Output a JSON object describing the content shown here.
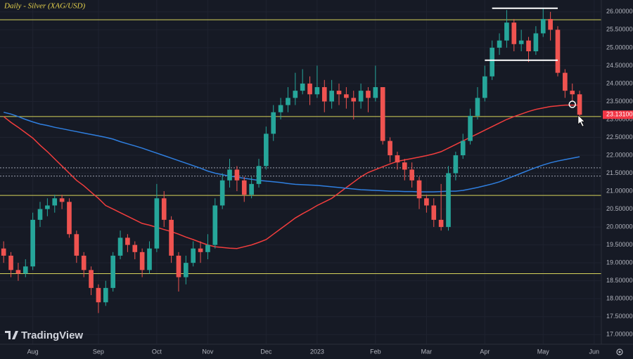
{
  "chart_data": {
    "type": "candlestick",
    "title": "Daily - Silver (XAG/USD)",
    "watermark": "TradingView",
    "categories": [
      null,
      null,
      null,
      null,
      "Aug",
      null,
      null,
      null,
      null,
      null,
      null,
      null,
      null,
      "Sep",
      null,
      null,
      null,
      null,
      null,
      null,
      null,
      "Oct",
      null,
      null,
      null,
      null,
      null,
      null,
      "Nov",
      null,
      null,
      null,
      null,
      null,
      null,
      null,
      "Dec",
      null,
      null,
      null,
      null,
      null,
      null,
      "2023",
      null,
      null,
      null,
      null,
      null,
      null,
      null,
      "Feb",
      null,
      null,
      null,
      null,
      null,
      null,
      "Mar",
      null,
      null,
      null,
      null,
      null,
      null,
      null,
      "Apr",
      null,
      null,
      null,
      null,
      null,
      null,
      null,
      "May",
      null,
      null,
      null,
      null,
      null,
      null,
      "Jun"
    ],
    "open": [
      19.4,
      19.2,
      18.8,
      18.7,
      18.9,
      20.2,
      20.5,
      20.6,
      20.8,
      20.7,
      19.8,
      19.2,
      18.8,
      18.3,
      17.9,
      18.3,
      19.2,
      19.7,
      19.5,
      19.3,
      18.8,
      19.4,
      20.8,
      20.2,
      19.2,
      18.6,
      19.0,
      19.4,
      19.3,
      19.5,
      20.6,
      21.3,
      21.6,
      21.3,
      20.9,
      21.2,
      21.7,
      22.6,
      23.2,
      23.4,
      23.6,
      23.8,
      24.0,
      23.7,
      23.9,
      23.5,
      23.8,
      23.7,
      23.6,
      23.5,
      23.8,
      23.6,
      23.9,
      22.4,
      22.0,
      21.8,
      21.6,
      21.3,
      20.8,
      20.6,
      20.2,
      20.0,
      21.5,
      22.0,
      22.4,
      23.1,
      23.6,
      24.2,
      25.0,
      25.2,
      25.7,
      25.1,
      25.2,
      24.9,
      25.4,
      25.8,
      25.5,
      24.3,
      23.8,
      23.7,
      null,
      null
    ],
    "high": [
      19.6,
      19.3,
      19.0,
      19.1,
      20.4,
      20.7,
      20.8,
      20.9,
      20.9,
      20.8,
      19.9,
      19.3,
      18.9,
      18.4,
      18.5,
      19.3,
      19.9,
      19.8,
      19.6,
      19.4,
      19.6,
      21.2,
      21.0,
      20.3,
      19.3,
      19.2,
      19.6,
      19.6,
      19.8,
      20.8,
      21.5,
      21.9,
      21.7,
      21.4,
      21.4,
      21.9,
      22.8,
      23.4,
      23.6,
      23.9,
      24.3,
      24.4,
      24.2,
      24.5,
      24.1,
      24.1,
      24.0,
      23.9,
      23.8,
      24.0,
      23.9,
      24.5,
      23.9,
      22.5,
      22.1,
      21.9,
      21.8,
      21.4,
      20.9,
      20.8,
      21.2,
      21.7,
      22.1,
      22.6,
      23.3,
      23.9,
      24.5,
      25.2,
      25.4,
      26.05,
      25.8,
      25.5,
      25.3,
      25.6,
      26.1,
      26.0,
      25.6,
      24.4,
      24.0,
      23.8,
      null,
      null
    ],
    "low": [
      19.0,
      18.6,
      18.5,
      18.6,
      18.8,
      20.0,
      20.3,
      20.4,
      20.5,
      19.7,
      19.0,
      18.6,
      18.1,
      17.6,
      17.8,
      18.2,
      19.1,
      19.3,
      19.1,
      18.6,
      18.7,
      19.3,
      20.0,
      19.0,
      18.2,
      18.4,
      18.9,
      19.0,
      19.1,
      19.4,
      20.5,
      21.1,
      21.0,
      20.7,
      20.8,
      21.1,
      21.6,
      22.4,
      23.0,
      23.2,
      23.4,
      23.7,
      23.4,
      23.6,
      23.2,
      23.3,
      23.4,
      23.3,
      23.0,
      23.3,
      23.2,
      23.5,
      22.3,
      21.8,
      21.6,
      21.3,
      21.1,
      20.5,
      20.4,
      20.0,
      19.9,
      19.9,
      21.3,
      21.9,
      22.3,
      23.0,
      23.5,
      24.1,
      24.8,
      25.0,
      24.9,
      24.9,
      24.6,
      24.8,
      25.3,
      25.2,
      24.2,
      23.6,
      23.5,
      23.0,
      null,
      null
    ],
    "close": [
      19.2,
      18.8,
      18.7,
      18.9,
      20.2,
      20.5,
      20.6,
      20.8,
      20.7,
      19.8,
      19.2,
      18.8,
      18.3,
      17.9,
      18.3,
      19.2,
      19.7,
      19.5,
      19.3,
      18.8,
      19.4,
      20.8,
      20.2,
      19.2,
      18.6,
      19.0,
      19.4,
      19.3,
      19.5,
      20.6,
      21.3,
      21.6,
      21.3,
      20.9,
      21.2,
      21.7,
      22.6,
      23.2,
      23.4,
      23.6,
      23.8,
      24.0,
      23.7,
      23.9,
      23.5,
      23.8,
      23.7,
      23.6,
      23.5,
      23.8,
      23.6,
      23.9,
      22.4,
      22.0,
      21.8,
      21.6,
      21.3,
      20.8,
      20.6,
      20.2,
      20.0,
      21.5,
      22.0,
      22.4,
      23.1,
      23.6,
      24.2,
      25.0,
      25.2,
      25.7,
      25.1,
      25.2,
      24.9,
      25.4,
      25.8,
      25.5,
      24.3,
      23.8,
      23.7,
      23.131,
      null,
      null
    ],
    "up_color": "#26a69a",
    "down_color": "#ef5350",
    "series": [
      {
        "color": "#f23d3d",
        "values": [
          23.08,
          22.92,
          22.78,
          22.63,
          22.48,
          22.28,
          22.1,
          21.9,
          21.7,
          21.5,
          21.3,
          21.15,
          20.97,
          20.8,
          20.6,
          20.5,
          20.4,
          20.3,
          20.2,
          20.1,
          20.05,
          19.99,
          19.93,
          19.87,
          19.8,
          19.72,
          19.65,
          19.57,
          19.5,
          19.45,
          19.43,
          19.41,
          19.4,
          19.45,
          19.5,
          19.57,
          19.65,
          19.8,
          19.95,
          20.1,
          20.25,
          20.37,
          20.48,
          20.6,
          20.7,
          20.8,
          20.95,
          21.1,
          21.25,
          21.4,
          21.52,
          21.6,
          21.68,
          21.76,
          21.83,
          21.87,
          21.91,
          21.95,
          21.99,
          22.04,
          22.1,
          22.2,
          22.3,
          22.4,
          22.5,
          22.6,
          22.7,
          22.8,
          22.9,
          23.0,
          23.08,
          23.15,
          23.22,
          23.28,
          23.32,
          23.36,
          23.38,
          23.4,
          23.4,
          23.4,
          null,
          null
        ]
      },
      {
        "color": "#2f7fe0",
        "values": [
          23.2,
          23.15,
          23.08,
          23.0,
          22.93,
          22.87,
          22.83,
          22.78,
          22.74,
          22.7,
          22.66,
          22.62,
          22.58,
          22.54,
          22.5,
          22.45,
          22.38,
          22.32,
          22.26,
          22.2,
          22.13,
          22.06,
          21.99,
          21.92,
          21.85,
          21.78,
          21.71,
          21.64,
          21.56,
          21.5,
          21.46,
          21.42,
          21.39,
          21.36,
          21.33,
          21.3,
          21.28,
          21.26,
          21.24,
          21.21,
          21.19,
          21.18,
          21.17,
          21.16,
          21.14,
          21.12,
          21.1,
          21.08,
          21.06,
          21.04,
          21.03,
          21.02,
          21.01,
          21.0,
          21.0,
          20.99,
          20.99,
          20.98,
          20.98,
          20.98,
          20.99,
          21.0,
          21.0,
          21.02,
          21.06,
          21.1,
          21.15,
          21.2,
          21.26,
          21.34,
          21.42,
          21.5,
          21.58,
          21.66,
          21.73,
          21.79,
          21.84,
          21.88,
          21.92,
          21.96,
          null,
          null
        ]
      }
    ],
    "hlines": [
      {
        "value": 25.78,
        "color": "#d6d35a",
        "dash": false
      },
      {
        "value": 23.08,
        "color": "#d6d35a",
        "dash": false
      },
      {
        "value": 20.88,
        "color": "#d6d35a",
        "dash": false
      },
      {
        "value": 18.7,
        "color": "#d6d35a",
        "dash": false
      },
      {
        "value": 21.65,
        "color": "#9aa0ad",
        "dash": true
      },
      {
        "value": 21.42,
        "color": "#9aa0ad",
        "dash": true
      }
    ],
    "segments": [
      {
        "value": 26.1,
        "from": 67,
        "to": 76,
        "color": "#ffffff"
      },
      {
        "value": 24.65,
        "from": 66,
        "to": 76,
        "color": "#ffffff"
      }
    ],
    "marker": {
      "index": 78,
      "value": 23.42,
      "color": "#ffffff"
    },
    "last_price": {
      "value": 23.131,
      "label": "23.13100",
      "color": "#f23645"
    },
    "ylim": [
      16.73,
      26.33
    ],
    "yticks": [
      {
        "value": 17,
        "label": "17.00000"
      },
      {
        "value": 17.5,
        "label": "17.50000"
      },
      {
        "value": 18,
        "label": "18.00000"
      },
      {
        "value": 18.5,
        "label": "18.50000"
      },
      {
        "value": 19,
        "label": "19.00000"
      },
      {
        "value": 19.5,
        "label": "19.50000"
      },
      {
        "value": 20,
        "label": "20.00000"
      },
      {
        "value": 20.5,
        "label": "20.50000"
      },
      {
        "value": 21,
        "label": "21.00000"
      },
      {
        "value": 21.5,
        "label": "21.50000"
      },
      {
        "value": 22,
        "label": "22.00000"
      },
      {
        "value": 22.5,
        "label": "22.50000"
      },
      {
        "value": 23,
        "label": "23.00000"
      },
      {
        "value": 23.5,
        "label": "23.50000"
      },
      {
        "value": 24,
        "label": "24.00000"
      },
      {
        "value": 24.5,
        "label": "24.50000"
      },
      {
        "value": 25,
        "label": "25.00000"
      },
      {
        "value": 25.5,
        "label": "25.50000"
      },
      {
        "value": 26,
        "label": "26.00000"
      }
    ],
    "grid": true
  }
}
